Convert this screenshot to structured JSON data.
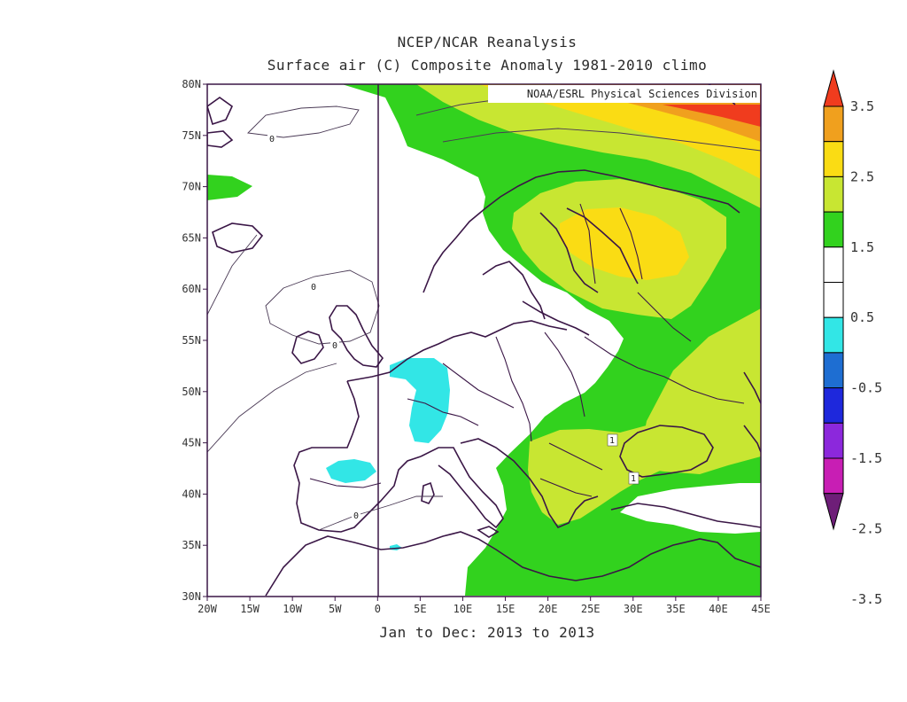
{
  "title": "NCEP/NCAR Reanalysis",
  "subtitle": "Surface air (C) Composite Anomaly 1981-2010 climo",
  "credit": "NOAA/ESRL Physical Sciences Division",
  "date_range": "Jan to Dec: 2013 to 2013",
  "map": {
    "lon_range": [
      -20,
      45
    ],
    "lat_range": [
      30,
      80
    ],
    "lon_ticks": [
      "20W",
      "15W",
      "10W",
      "5W",
      "0",
      "5E",
      "10E",
      "15E",
      "20E",
      "25E",
      "30E",
      "35E",
      "40E",
      "45E"
    ],
    "lat_ticks": [
      "80N",
      "75N",
      "70N",
      "65N",
      "60N",
      "55N",
      "50N",
      "45N",
      "40N",
      "35N",
      "30N"
    ],
    "contour_labels": [
      "0",
      "0",
      "0",
      "0",
      "1",
      "1"
    ]
  },
  "colorbar": {
    "labels": [
      "3.5",
      "2.5",
      "1.5",
      "0.5",
      "-0.5",
      "-1.5",
      "-2.5",
      "-3.5"
    ],
    "colors": [
      "#f03c1e",
      "#f0a01e",
      "#fadc14",
      "#c8e632",
      "#32d21e",
      "#ffffff",
      "#ffffff",
      "#32e6e6",
      "#1e6ed2",
      "#1e28dc",
      "#8c28dc",
      "#c81eb4",
      "#6e1e78"
    ]
  }
}
